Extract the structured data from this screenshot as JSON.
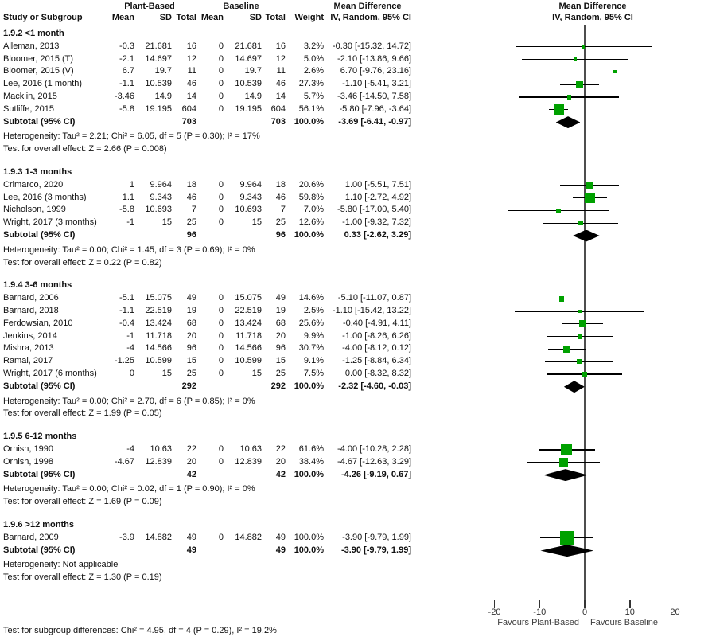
{
  "chart_data": {
    "type": "forest",
    "effect_measure": "Mean Difference",
    "model": "IV, Random, 95% CI",
    "columns": {
      "study": "Study or Subgroup",
      "group1": "Plant-Based",
      "group2": "Baseline",
      "mean": "Mean",
      "sd": "SD",
      "total": "Total",
      "weight": "Weight",
      "effect_line1": "Mean Difference",
      "effect_line2": "IV, Random, 95% CI"
    },
    "plot_header": {
      "line1": "Mean Difference",
      "line2": "IV, Random, 95% CI"
    },
    "axis": {
      "ticks": [
        -20,
        -10,
        0,
        10,
        20
      ],
      "xmin": -24,
      "xmax": 26,
      "favours_left": "Favours Plant-Based",
      "favours_right": "Favours Baseline"
    },
    "colors": {
      "square": "#00a100",
      "diamond": "#000000",
      "ci_line": "#000000",
      "zero_line": "#4d4d4d",
      "axis": "#333333"
    },
    "sections": [
      {
        "label": "1.9.2 <1 month",
        "studies": [
          {
            "name": "Alleman, 2013",
            "mean": "-0.3",
            "sd": "21.681",
            "total": "16",
            "b_mean": "0",
            "b_sd": "21.681",
            "b_total": "16",
            "weight": "3.2%",
            "weight_pct": 3.2,
            "md_label": "-0.30 [-15.32, 14.72]",
            "md": -0.3,
            "ci_lo": -15.32,
            "ci_hi": 14.72
          },
          {
            "name": "Bloomer, 2015 (T)",
            "mean": "-2.1",
            "sd": "14.697",
            "total": "12",
            "b_mean": "0",
            "b_sd": "14.697",
            "b_total": "12",
            "weight": "5.0%",
            "weight_pct": 5.0,
            "md_label": "-2.10 [-13.86, 9.66]",
            "md": -2.1,
            "ci_lo": -13.86,
            "ci_hi": 9.66
          },
          {
            "name": "Bloomer, 2015 (V)",
            "mean": "6.7",
            "sd": "19.7",
            "total": "11",
            "b_mean": "0",
            "b_sd": "19.7",
            "b_total": "11",
            "weight": "2.6%",
            "weight_pct": 2.6,
            "md_label": "6.70 [-9.76, 23.16]",
            "md": 6.7,
            "ci_lo": -9.76,
            "ci_hi": 23.16
          },
          {
            "name": "Lee, 2016 (1 month)",
            "mean": "-1.1",
            "sd": "10.539",
            "total": "46",
            "b_mean": "0",
            "b_sd": "10.539",
            "b_total": "46",
            "weight": "27.3%",
            "weight_pct": 27.3,
            "md_label": "-1.10 [-5.41, 3.21]",
            "md": -1.1,
            "ci_lo": -5.41,
            "ci_hi": 3.21
          },
          {
            "name": "Macklin, 2015",
            "mean": "-3.46",
            "sd": "14.9",
            "total": "14",
            "b_mean": "0",
            "b_sd": "14.9",
            "b_total": "14",
            "weight": "5.7%",
            "weight_pct": 5.7,
            "md_label": "-3.46 [-14.50, 7.58]",
            "md": -3.46,
            "ci_lo": -14.5,
            "ci_hi": 7.58
          },
          {
            "name": "Sutliffe, 2015",
            "mean": "-5.8",
            "sd": "19.195",
            "total": "604",
            "b_mean": "0",
            "b_sd": "19.195",
            "b_total": "604",
            "weight": "56.1%",
            "weight_pct": 56.1,
            "md_label": "-5.80 [-7.96, -3.64]",
            "md": -5.8,
            "ci_lo": -7.96,
            "ci_hi": -3.64
          }
        ],
        "subtotal": {
          "label": "Subtotal (95% CI)",
          "total": "703",
          "b_total": "703",
          "weight": "100.0%",
          "md_label": "-3.69 [-6.41, -0.97]",
          "md": -3.69,
          "ci_lo": -6.41,
          "ci_hi": -0.97
        },
        "heterogeneity": "Heterogeneity: Tau² = 2.21; Chi² = 6.05, df = 5 (P = 0.30); I² = 17%",
        "overall_effect": "Test for overall effect: Z = 2.66 (P = 0.008)"
      },
      {
        "label": "1.9.3 1-3 months",
        "studies": [
          {
            "name": "Crimarco, 2020",
            "mean": "1",
            "sd": "9.964",
            "total": "18",
            "b_mean": "0",
            "b_sd": "9.964",
            "b_total": "18",
            "weight": "20.6%",
            "weight_pct": 20.6,
            "md_label": "1.00 [-5.51, 7.51]",
            "md": 1.0,
            "ci_lo": -5.51,
            "ci_hi": 7.51
          },
          {
            "name": "Lee, 2016 (3 months)",
            "mean": "1.1",
            "sd": "9.343",
            "total": "46",
            "b_mean": "0",
            "b_sd": "9.343",
            "b_total": "46",
            "weight": "59.8%",
            "weight_pct": 59.8,
            "md_label": "1.10 [-2.72, 4.92]",
            "md": 1.1,
            "ci_lo": -2.72,
            "ci_hi": 4.92
          },
          {
            "name": "Nicholson, 1999",
            "mean": "-5.8",
            "sd": "10.693",
            "total": "7",
            "b_mean": "0",
            "b_sd": "10.693",
            "b_total": "7",
            "weight": "7.0%",
            "weight_pct": 7.0,
            "md_label": "-5.80 [-17.00, 5.40]",
            "md": -5.8,
            "ci_lo": -17.0,
            "ci_hi": 5.4
          },
          {
            "name": "Wright, 2017 (3 months)",
            "mean": "-1",
            "sd": "15",
            "total": "25",
            "b_mean": "0",
            "b_sd": "15",
            "b_total": "25",
            "weight": "12.6%",
            "weight_pct": 12.6,
            "md_label": "-1.00 [-9.32, 7.32]",
            "md": -1.0,
            "ci_lo": -9.32,
            "ci_hi": 7.32
          }
        ],
        "subtotal": {
          "label": "Subtotal (95% CI)",
          "total": "96",
          "b_total": "96",
          "weight": "100.0%",
          "md_label": "0.33 [-2.62, 3.29]",
          "md": 0.33,
          "ci_lo": -2.62,
          "ci_hi": 3.29
        },
        "heterogeneity": "Heterogeneity: Tau² = 0.00; Chi² = 1.45, df = 3 (P = 0.69); I² = 0%",
        "overall_effect": "Test for overall effect: Z = 0.22 (P = 0.82)"
      },
      {
        "label": "1.9.4 3-6 months",
        "studies": [
          {
            "name": "Barnard, 2006",
            "mean": "-5.1",
            "sd": "15.075",
            "total": "49",
            "b_mean": "0",
            "b_sd": "15.075",
            "b_total": "49",
            "weight": "14.6%",
            "weight_pct": 14.6,
            "md_label": "-5.10 [-11.07, 0.87]",
            "md": -5.1,
            "ci_lo": -11.07,
            "ci_hi": 0.87
          },
          {
            "name": "Barnard, 2018",
            "mean": "-1.1",
            "sd": "22.519",
            "total": "19",
            "b_mean": "0",
            "b_sd": "22.519",
            "b_total": "19",
            "weight": "2.5%",
            "weight_pct": 2.5,
            "md_label": "-1.10 [-15.42, 13.22]",
            "md": -1.1,
            "ci_lo": -15.42,
            "ci_hi": 13.22
          },
          {
            "name": "Ferdowsian, 2010",
            "mean": "-0.4",
            "sd": "13.424",
            "total": "68",
            "b_mean": "0",
            "b_sd": "13.424",
            "b_total": "68",
            "weight": "25.6%",
            "weight_pct": 25.6,
            "md_label": "-0.40 [-4.91, 4.11]",
            "md": -0.4,
            "ci_lo": -4.91,
            "ci_hi": 4.11
          },
          {
            "name": "Jenkins, 2014",
            "mean": "-1",
            "sd": "11.718",
            "total": "20",
            "b_mean": "0",
            "b_sd": "11.718",
            "b_total": "20",
            "weight": "9.9%",
            "weight_pct": 9.9,
            "md_label": "-1.00 [-8.26, 6.26]",
            "md": -1.0,
            "ci_lo": -8.26,
            "ci_hi": 6.26
          },
          {
            "name": "Mishra, 2013",
            "mean": "-4",
            "sd": "14.566",
            "total": "96",
            "b_mean": "0",
            "b_sd": "14.566",
            "b_total": "96",
            "weight": "30.7%",
            "weight_pct": 30.7,
            "md_label": "-4.00 [-8.12, 0.12]",
            "md": -4.0,
            "ci_lo": -8.12,
            "ci_hi": 0.12
          },
          {
            "name": "Ramal, 2017",
            "mean": "-1.25",
            "sd": "10.599",
            "total": "15",
            "b_mean": "0",
            "b_sd": "10.599",
            "b_total": "15",
            "weight": "9.1%",
            "weight_pct": 9.1,
            "md_label": "-1.25 [-8.84, 6.34]",
            "md": -1.25,
            "ci_lo": -8.84,
            "ci_hi": 6.34
          },
          {
            "name": "Wright, 2017 (6 months)",
            "mean": "0",
            "sd": "15",
            "total": "25",
            "b_mean": "0",
            "b_sd": "15",
            "b_total": "25",
            "weight": "7.5%",
            "weight_pct": 7.5,
            "md_label": "0.00 [-8.32, 8.32]",
            "md": 0.0,
            "ci_lo": -8.32,
            "ci_hi": 8.32
          }
        ],
        "subtotal": {
          "label": "Subtotal (95% CI)",
          "total": "292",
          "b_total": "292",
          "weight": "100.0%",
          "md_label": "-2.32 [-4.60, -0.03]",
          "md": -2.32,
          "ci_lo": -4.6,
          "ci_hi": -0.03
        },
        "heterogeneity": "Heterogeneity: Tau² = 0.00; Chi² = 2.70, df = 6 (P = 0.85); I² = 0%",
        "overall_effect": "Test for overall effect: Z = 1.99 (P = 0.05)"
      },
      {
        "label": "1.9.5 6-12 months",
        "studies": [
          {
            "name": "Ornish, 1990",
            "mean": "-4",
            "sd": "10.63",
            "total": "22",
            "b_mean": "0",
            "b_sd": "10.63",
            "b_total": "22",
            "weight": "61.6%",
            "weight_pct": 61.6,
            "md_label": "-4.00 [-10.28, 2.28]",
            "md": -4.0,
            "ci_lo": -10.28,
            "ci_hi": 2.28
          },
          {
            "name": "Ornish, 1998",
            "mean": "-4.67",
            "sd": "12.839",
            "total": "20",
            "b_mean": "0",
            "b_sd": "12.839",
            "b_total": "20",
            "weight": "38.4%",
            "weight_pct": 38.4,
            "md_label": "-4.67 [-12.63, 3.29]",
            "md": -4.67,
            "ci_lo": -12.63,
            "ci_hi": 3.29
          }
        ],
        "subtotal": {
          "label": "Subtotal (95% CI)",
          "total": "42",
          "b_total": "42",
          "weight": "100.0%",
          "md_label": "-4.26 [-9.19, 0.67]",
          "md": -4.26,
          "ci_lo": -9.19,
          "ci_hi": 0.67
        },
        "heterogeneity": "Heterogeneity: Tau² = 0.00; Chi² = 0.02, df = 1 (P = 0.90); I² = 0%",
        "overall_effect": "Test for overall effect: Z = 1.69 (P = 0.09)"
      },
      {
        "label": "1.9.6 >12 months",
        "studies": [
          {
            "name": "Barnard, 2009",
            "mean": "-3.9",
            "sd": "14.882",
            "total": "49",
            "b_mean": "0",
            "b_sd": "14.882",
            "b_total": "49",
            "weight": "100.0%",
            "weight_pct": 100.0,
            "md_label": "-3.90 [-9.79, 1.99]",
            "md": -3.9,
            "ci_lo": -9.79,
            "ci_hi": 1.99
          }
        ],
        "subtotal": {
          "label": "Subtotal (95% CI)",
          "total": "49",
          "b_total": "49",
          "weight": "100.0%",
          "md_label": "-3.90 [-9.79, 1.99]",
          "md": -3.9,
          "ci_lo": -9.79,
          "ci_hi": 1.99
        },
        "heterogeneity": "Heterogeneity: Not applicable",
        "overall_effect": "Test for overall effect: Z = 1.30 (P = 0.19)"
      }
    ],
    "footer": "Test for subgroup differences: Chi² = 4.95, df = 4 (P = 0.29), I² = 19.2%"
  }
}
